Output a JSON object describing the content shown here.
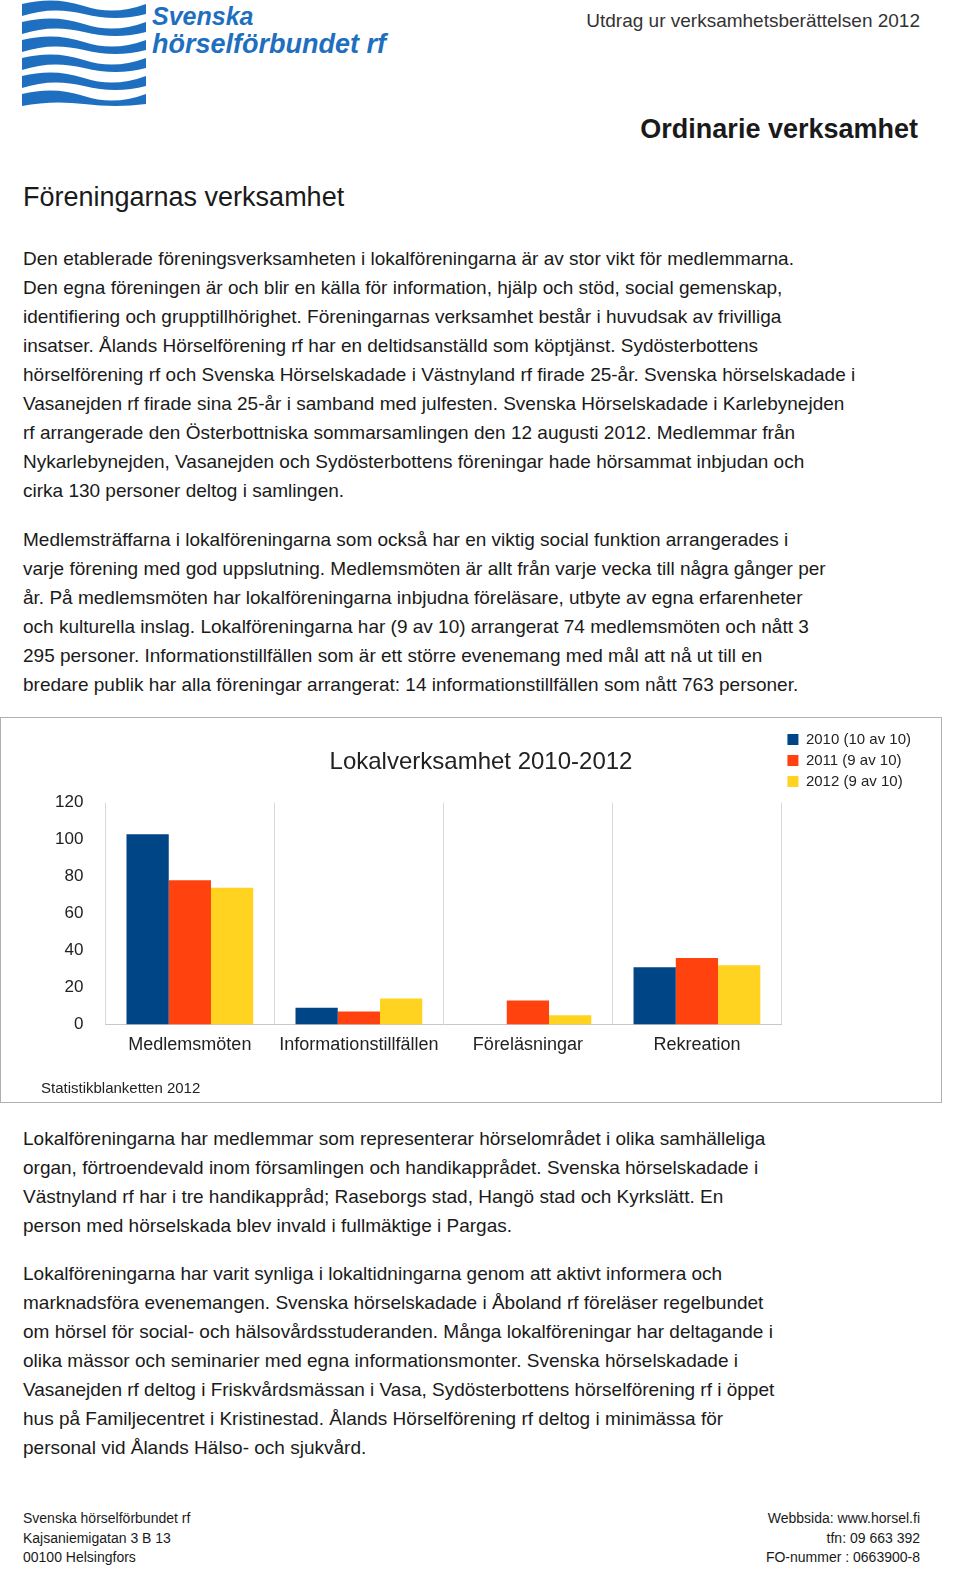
{
  "header": {
    "logo": [
      "Svenska",
      "hörselförbundet rf"
    ],
    "top_right": "Utdrag ur verksamhetsberättelsen 2012",
    "section": "Ordinarie verksamhet",
    "heading": "Föreningarnas verksamhet"
  },
  "paragraphs": [
    [
      "Den etablerade föreningsverksamheten i lokalföreningarna är av stor vikt för medlemmarna.",
      "Den egna föreningen är och blir en källa för information, hjälp och stöd, social gemenskap,",
      "identifiering och grupptillhörighet. Föreningarnas verksamhet består i huvudsak av frivilliga",
      "insatser. Ålands Hörselförening rf har en deltidsanställd som köptjänst. Sydösterbottens",
      "hörselförening rf och Svenska Hörselskadade i Västnyland rf firade 25-år. Svenska hörselskadade i",
      "Vasanejden rf firade sina 25-år i samband med julfesten. Svenska Hörselskadade i Karlebynejden",
      "rf arrangerade den Österbottniska sommarsamlingen den 12 augusti 2012. Medlemmar från",
      "Nykarlebynejden, Vasanejden och Sydösterbottens föreningar hade hörsammat inbjudan och",
      "cirka 130 personer deltog i samlingen."
    ],
    [
      "Medlemsträffarna i lokalföreningarna som också har en viktig social funktion arrangerades i",
      "varje förening med god uppslutning. Medlemsmöten är allt från varje vecka till några gånger per",
      "år. På medlemsmöten har lokalföreningarna inbjudna föreläsare, utbyte av egna erfarenheter",
      "och kulturella inslag. Lokalföreningarna har (9 av 10) arrangerat 74 medlemsmöten och nått 3",
      "295 personer. Informationstillfällen som är ett större evenemang med mål att nå ut till en",
      "bredare publik har alla föreningar arrangerat: 14 informationstillfällen som nått 763 personer."
    ],
    [
      "Lokalföreningarna har medlemmar som representerar hörselområdet i olika samhälleliga",
      "organ, förtroendevald inom församlingen och handikapprådet. Svenska hörselskadade i",
      "Västnyland rf har i tre handikappråd; Raseborgs stad, Hangö stad och Kyrkslätt.  En",
      "person med hörselskada blev invald i fullmäktige i Pargas."
    ],
    [
      "Lokalföreningarna har varit synliga i lokaltidningarna genom att aktivt informera och",
      "marknadsföra evenemangen. Svenska hörselskadade i Åboland rf föreläser regelbundet",
      "om hörsel för social- och hälsovårdsstuderanden. Många lokalföreningar har deltagande i",
      "olika mässor och seminarier med egna informationsmonter. Svenska hörselskadade i",
      "Vasanejden rf deltog i Friskvårdsmässan i Vasa, Sydösterbottens hörselförening rf i öppet",
      "hus på Familjecentret i Kristinestad. Ålands Hörselförening rf deltog i minimässa för",
      "personal vid Ålands Hälso- och sjukvård."
    ]
  ],
  "chart_data": {
    "type": "bar",
    "title": "Lokalverksamhet 2010-2012",
    "categories": [
      "Medlemsmöten",
      "Informationstillfällen",
      "Föreläsningar",
      "Rekreation"
    ],
    "series": [
      {
        "name": "2010 (10 av 10)",
        "color": "#004586",
        "values": [
          103,
          9,
          0,
          31
        ]
      },
      {
        "name": "2011 (9 av 10)",
        "color": "#ff420e",
        "values": [
          78,
          7,
          13,
          36
        ]
      },
      {
        "name": "2012 (9 av 10)",
        "color": "#ffd320",
        "values": [
          74,
          14,
          5,
          32
        ]
      }
    ],
    "ylim": [
      0,
      120
    ],
    "yticks": [
      0,
      20,
      40,
      60,
      80,
      100,
      120
    ],
    "grid": "x",
    "legend": "top-right",
    "source": "Statistikblanketten 2012"
  },
  "footer": {
    "left": [
      "Svenska hörselförbundet rf",
      "Kajsaniemigatan 3 B 13",
      "00100 Helsingfors"
    ],
    "right": [
      "Webbsida: www.horsel.fi",
      "tfn: 09 663 392",
      "FO-nummer : 0663900-8"
    ]
  }
}
